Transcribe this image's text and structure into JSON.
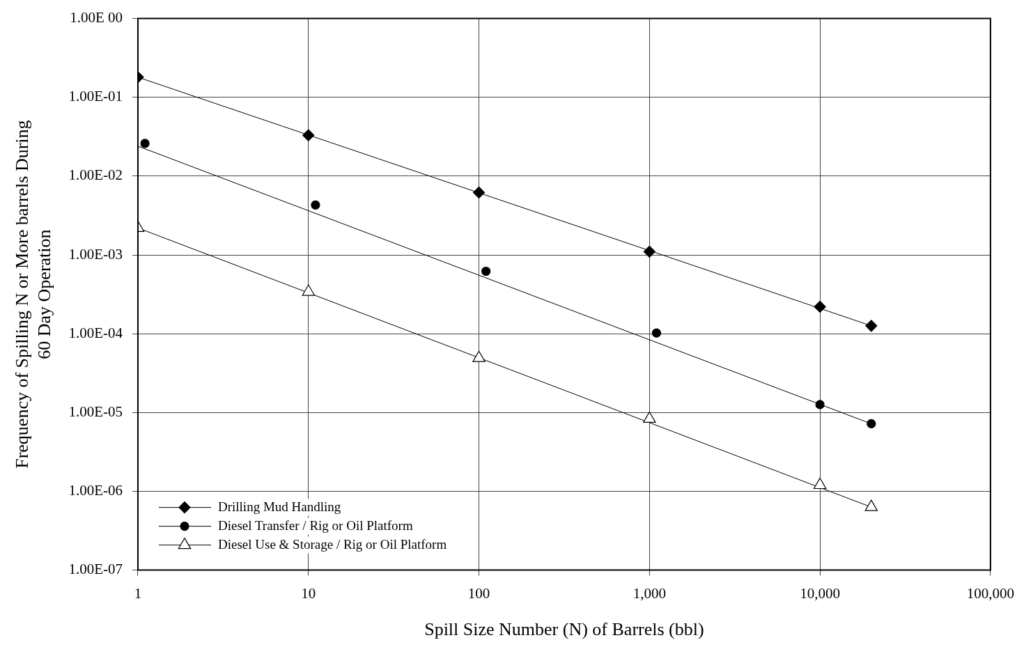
{
  "chart_data": {
    "type": "scatter",
    "xlabel": "Spill Size Number (N) of Barrels (bbl)",
    "ylabel": "Frequency of Spilling N or More barrels During\n60 Day Operation",
    "log": "xy",
    "grid": true,
    "legend": "bottom left",
    "xlim": [
      1,
      100000
    ],
    "xticks": [
      1,
      10,
      100,
      {
        "value": 1000,
        "label": "1,000"
      },
      {
        "value": 10000,
        "label": "10,000"
      },
      {
        "value": 100000,
        "label": "100,000"
      }
    ],
    "ylim": [
      1e-07,
      1
    ],
    "yticks": [
      {
        "value": 1e-07,
        "label": "1.00E-07"
      },
      {
        "value": 1e-06,
        "label": "1.00E-06"
      },
      {
        "value": 1e-05,
        "label": "1.00E-05"
      },
      {
        "value": 0.0001,
        "label": "1.00E-04"
      },
      {
        "value": 0.001,
        "label": "1.00E-03"
      },
      {
        "value": 0.01,
        "label": "1.00E-02"
      },
      {
        "value": 0.1,
        "label": "1.00E-01"
      },
      {
        "value": 1,
        "label": "1.00E 00"
      }
    ],
    "series": [
      {
        "name": "Drilling Mud Handling",
        "color": "#000000",
        "marker": "diamond",
        "x": [
          1,
          10,
          100,
          1000,
          10000,
          20000
        ],
        "values": [
          0.18,
          0.033,
          0.0062,
          0.0011,
          0.00022,
          0.000126
        ]
      },
      {
        "name": "Diesel Transfer / Rig or Oil Platform",
        "color": "#000000",
        "marker": "circle",
        "x": [
          1.1,
          11,
          110,
          1100,
          10000,
          20000
        ],
        "values": [
          0.026,
          0.0043,
          0.00062,
          0.000102,
          1.26e-05,
          7.2e-06
        ]
      },
      {
        "name": "Diesel Use & Storage / Rig or Oil Platform",
        "color": "#000000",
        "marker": "triangle",
        "x": [
          1,
          10,
          100,
          1000,
          10000,
          20000
        ],
        "values": [
          0.0022,
          0.00034,
          4.9e-05,
          8.3e-06,
          1.2e-06,
          6.3e-07
        ]
      },
      {
        "type": "line",
        "color": "#000000",
        "marker": "none",
        "x": [
          1,
          20000
        ],
        "values": [
          0.18,
          0.000126
        ]
      },
      {
        "type": "line",
        "color": "#000000",
        "marker": "none",
        "x": [
          1,
          20000
        ],
        "values": [
          0.024,
          7.2e-06
        ]
      },
      {
        "type": "line",
        "color": "#000000",
        "marker": "none",
        "x": [
          1,
          20000
        ],
        "values": [
          0.0022,
          6.3e-07
        ]
      }
    ]
  }
}
